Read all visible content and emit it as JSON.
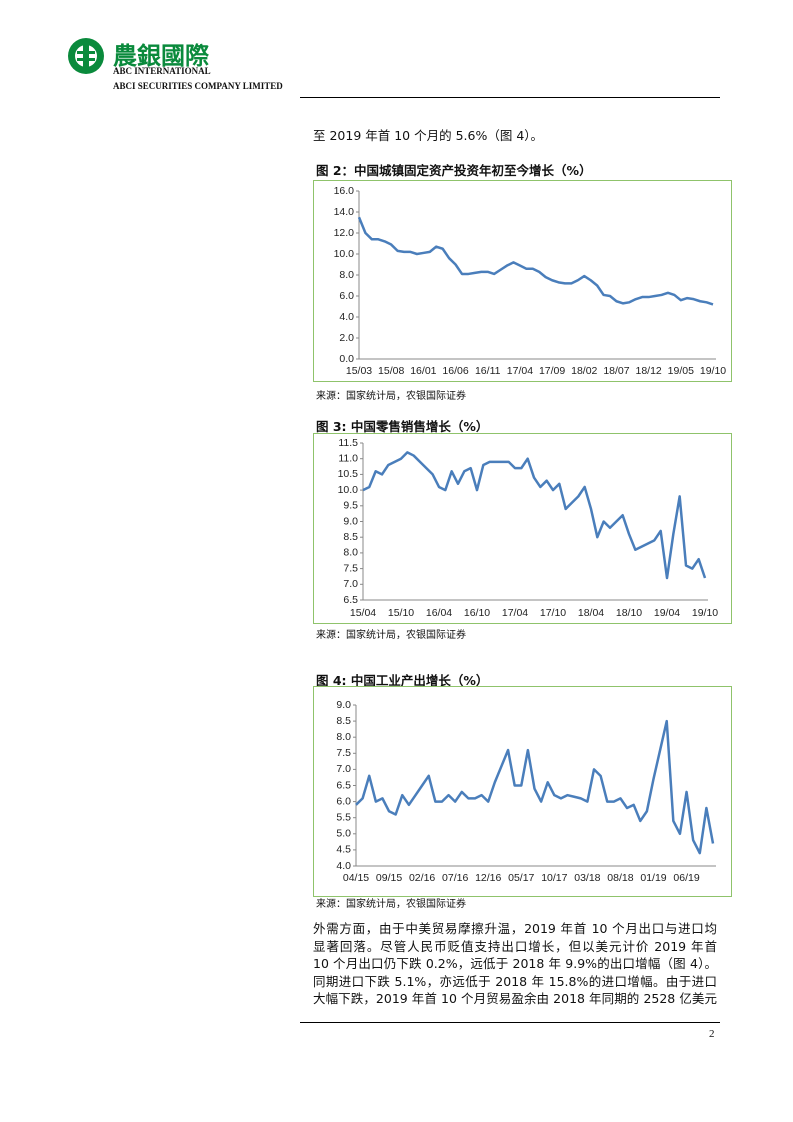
{
  "header": {
    "logo_text": "農銀國際",
    "line1": "ABC INTERNATIONAL",
    "line2": "ABCI SECURITIES COMPANY LIMITED"
  },
  "intro": "至 2019 年首 10 个月的 5.6%（图 4）。",
  "chart_data": [
    {
      "type": "line",
      "title": "图 2：中国城镇固定资产投资年初至今增长（%）",
      "source": "来源：国家统计局，农银国际证券",
      "categories": [
        "15/03",
        null,
        null,
        null,
        null,
        "15/08",
        null,
        null,
        null,
        null,
        "16/01",
        null,
        null,
        null,
        null,
        "16/06",
        null,
        null,
        null,
        null,
        "16/11",
        null,
        null,
        null,
        null,
        "17/04",
        null,
        null,
        null,
        null,
        "17/09",
        null,
        null,
        null,
        null,
        "18/02",
        null,
        null,
        null,
        null,
        "18/07",
        null,
        null,
        null,
        null,
        "18/12",
        null,
        null,
        null,
        null,
        "19/05",
        null,
        null,
        null,
        null,
        "19/10"
      ],
      "values": [
        13.5,
        12.0,
        11.4,
        11.4,
        11.2,
        10.9,
        10.3,
        10.2,
        10.2,
        10.0,
        10.1,
        10.2,
        10.7,
        10.5,
        9.6,
        9.0,
        8.1,
        8.1,
        8.2,
        8.3,
        8.3,
        8.1,
        8.5,
        8.9,
        9.2,
        8.9,
        8.6,
        8.6,
        8.3,
        7.8,
        7.5,
        7.3,
        7.2,
        7.2,
        7.5,
        7.9,
        7.5,
        7.0,
        6.1,
        6.0,
        5.5,
        5.3,
        5.4,
        5.7,
        5.9,
        5.9,
        6.0,
        6.1,
        6.3,
        6.1,
        5.6,
        5.8,
        5.7,
        5.5,
        5.4,
        5.2
      ],
      "color": "#4a7ebb",
      "ylim": [
        0,
        16
      ],
      "yticks": [
        {
          "value": 0,
          "label": "0.0"
        },
        {
          "value": 2,
          "label": "2.0"
        },
        {
          "value": 4,
          "label": "4.0"
        },
        {
          "value": 6,
          "label": "6.0"
        },
        {
          "value": 8,
          "label": "8.0"
        },
        {
          "value": 10,
          "label": "10.0"
        },
        {
          "value": 12,
          "label": "12.0"
        },
        {
          "value": 14,
          "label": "14.0"
        },
        {
          "value": 16,
          "label": "16.0"
        }
      ]
    },
    {
      "type": "line",
      "title": "图 3:  中国零售销售增长（%）",
      "source": "来源：国家统计局，农银国际证券",
      "categories": [
        "15/04",
        null,
        null,
        null,
        null,
        null,
        "15/10",
        null,
        null,
        null,
        null,
        null,
        "16/04",
        null,
        null,
        null,
        null,
        null,
        "16/10",
        null,
        null,
        null,
        null,
        null,
        "17/04",
        null,
        null,
        null,
        null,
        null,
        "17/10",
        null,
        null,
        null,
        null,
        null,
        "18/04",
        null,
        null,
        null,
        null,
        null,
        "18/10",
        null,
        null,
        null,
        null,
        null,
        "19/04",
        null,
        null,
        null,
        null,
        null,
        "19/10"
      ],
      "values": [
        10.0,
        10.1,
        10.6,
        10.5,
        10.8,
        10.9,
        11.0,
        11.2,
        11.1,
        10.9,
        10.7,
        10.5,
        10.1,
        10.0,
        10.6,
        10.2,
        10.6,
        10.7,
        10.0,
        10.8,
        10.9,
        10.9,
        10.9,
        10.9,
        10.7,
        10.7,
        11.0,
        10.4,
        10.1,
        10.3,
        10.0,
        10.2,
        9.4,
        9.6,
        9.8,
        10.1,
        9.4,
        8.5,
        9.0,
        8.8,
        9.0,
        9.2,
        8.6,
        8.1,
        8.2,
        8.3,
        8.4,
        8.7,
        7.2,
        8.6,
        9.8,
        7.6,
        7.5,
        7.8,
        7.2
      ],
      "color": "#4a7ebb",
      "ylim": [
        6.5,
        11.5
      ],
      "yticks": [
        6.5,
        {
          "value": 7,
          "label": "7.0"
        },
        7.5,
        {
          "value": 8,
          "label": "8.0"
        },
        8.5,
        {
          "value": 9,
          "label": "9.0"
        },
        9.5,
        {
          "value": 10,
          "label": "10.0"
        },
        10.5,
        {
          "value": 11,
          "label": "11.0"
        },
        11.5
      ]
    },
    {
      "type": "line",
      "title": "图 4:  中国工业产出增长（%）",
      "source": "来源：国家统计局，农银国际证券",
      "categories": [
        "04/15",
        null,
        null,
        null,
        null,
        "09/15",
        null,
        null,
        null,
        null,
        "02/16",
        null,
        null,
        null,
        null,
        "07/16",
        null,
        null,
        null,
        null,
        "12/16",
        null,
        null,
        null,
        null,
        "05/17",
        null,
        null,
        null,
        null,
        "10/17",
        null,
        null,
        null,
        null,
        "03/18",
        null,
        null,
        null,
        null,
        "08/18",
        null,
        null,
        null,
        null,
        "01/19",
        null,
        null,
        null,
        null,
        "06/19",
        null,
        null,
        null,
        null
      ],
      "values": [
        5.9,
        6.1,
        6.8,
        6.0,
        6.1,
        5.7,
        5.6,
        6.2,
        5.9,
        6.2,
        6.5,
        6.8,
        6.0,
        6.0,
        6.2,
        6.0,
        6.3,
        6.1,
        6.1,
        6.2,
        6.0,
        6.6,
        7.1,
        7.6,
        6.5,
        6.5,
        7.6,
        6.4,
        6.0,
        6.6,
        6.2,
        6.1,
        6.2,
        6.15,
        6.1,
        6.0,
        7.0,
        6.8,
        6.0,
        6.0,
        6.1,
        5.8,
        5.9,
        5.4,
        5.7,
        6.7,
        7.6,
        8.5,
        5.4,
        5.0,
        6.3,
        4.8,
        4.4,
        5.8,
        4.7
      ],
      "color": "#4a7ebb",
      "ylim": [
        4,
        9
      ],
      "yticks": [
        {
          "value": 4,
          "label": "4.0"
        },
        4.5,
        {
          "value": 5,
          "label": "5.0"
        },
        5.5,
        {
          "value": 6,
          "label": "6.0"
        },
        6.5,
        {
          "value": 7,
          "label": "7.0"
        },
        7.5,
        {
          "value": 8,
          "label": "8.0"
        },
        8.5,
        {
          "value": 9,
          "label": "9.0"
        }
      ]
    }
  ],
  "paragraph": [
    "外需方面，由于中美贸易摩擦升温，2019 年首 10 个月出口与进口均",
    "显著回落。尽管人民币贬值支持出口增长，但以美元计价 2019 年首",
    "10 个月出口仍下跌 0.2%，远低于 2018 年 9.9%的出口增幅（图 4）。",
    "同期进口下跌 5.1%，亦远低于 2018 年 15.8%的进口增幅。由于进口",
    "大幅下跌，2019 年首 10 个月贸易盈余由 2018 年同期的 2528 亿美元"
  ],
  "footer": {
    "page_number": "2"
  }
}
